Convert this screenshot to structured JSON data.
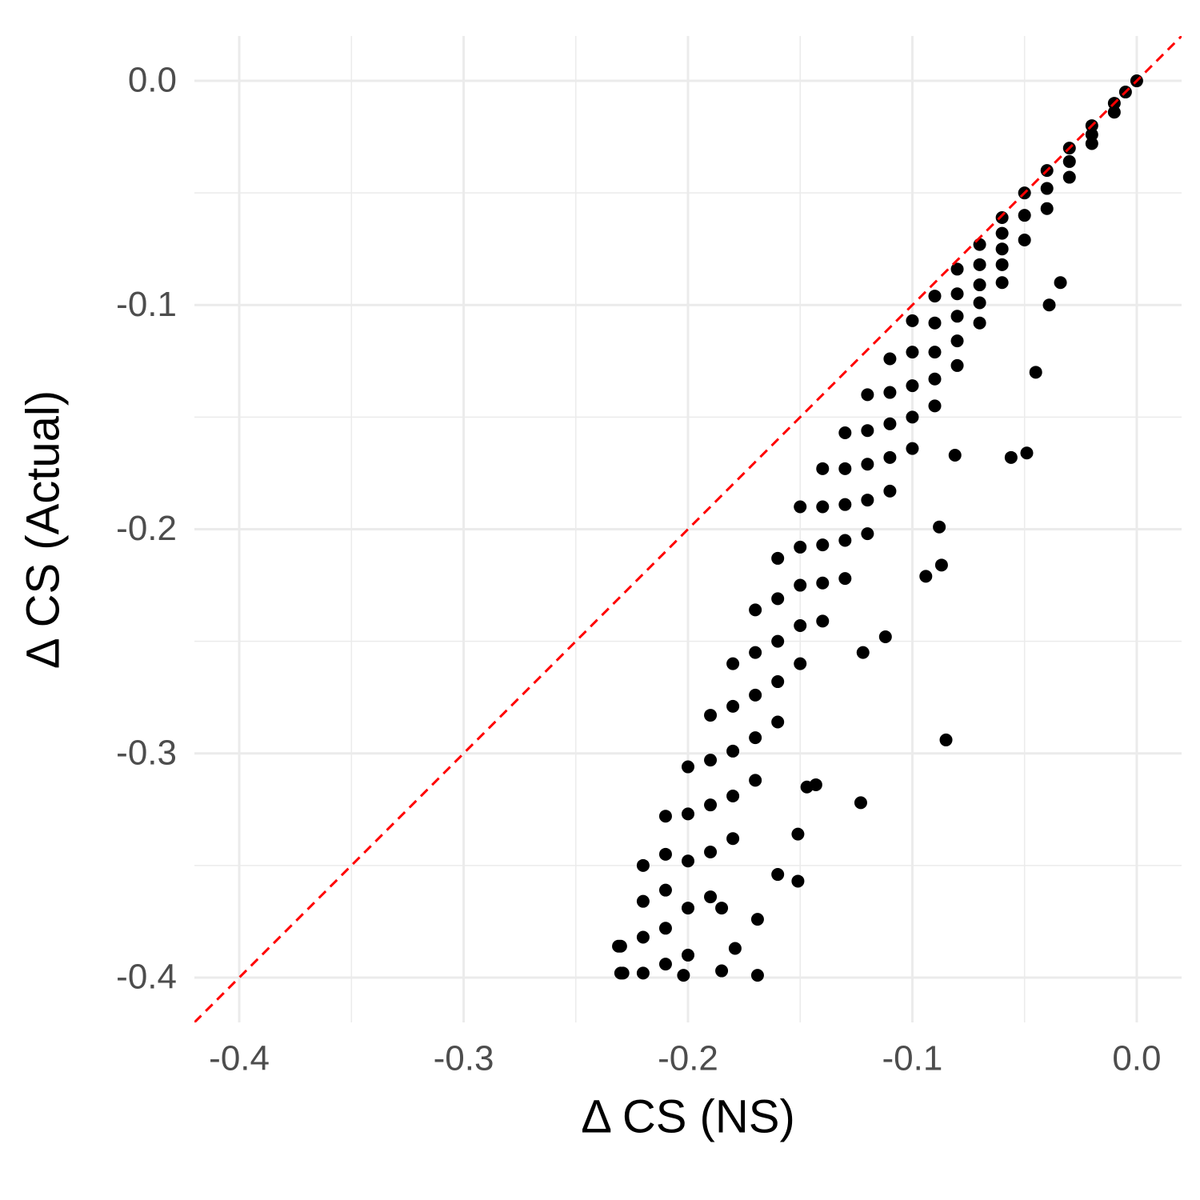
{
  "chart_data": {
    "type": "scatter",
    "x_label": "Δ CS (NS)",
    "y_label": "Δ CS (Actual)",
    "xlim": [
      -0.42,
      0.02
    ],
    "ylim": [
      -0.42,
      0.02
    ],
    "xticks": [
      {
        "value": -0.4,
        "label": "-0.4"
      },
      {
        "value": -0.3,
        "label": "-0.3"
      },
      {
        "value": -0.2,
        "label": "-0.2"
      },
      {
        "value": -0.1,
        "label": "-0.1"
      },
      {
        "value": 0,
        "label": "0.0"
      }
    ],
    "yticks": [
      {
        "value": -0.4,
        "label": "-0.4"
      },
      {
        "value": -0.3,
        "label": "-0.3"
      },
      {
        "value": -0.2,
        "label": "-0.2"
      },
      {
        "value": -0.1,
        "label": "-0.1"
      },
      {
        "value": 0,
        "label": "0.0"
      }
    ],
    "x_minor_ticks": [
      -0.35,
      -0.25,
      -0.15,
      -0.05
    ],
    "y_minor_ticks": [
      -0.35,
      -0.25,
      -0.15,
      -0.05
    ],
    "grid": true,
    "color": "#000000",
    "reference_line": {
      "slope": 1,
      "intercept": 0,
      "color": "#ff0000"
    },
    "x": [
      0,
      -0.005,
      -0.01,
      -0.01,
      -0.02,
      -0.02,
      -0.02,
      -0.03,
      -0.03,
      -0.03,
      -0.04,
      -0.04,
      -0.04,
      -0.05,
      -0.05,
      -0.05,
      -0.06,
      -0.06,
      -0.06,
      -0.06,
      -0.06,
      -0.07,
      -0.07,
      -0.07,
      -0.07,
      -0.07,
      -0.08,
      -0.08,
      -0.08,
      -0.08,
      -0.08,
      -0.09,
      -0.09,
      -0.09,
      -0.09,
      -0.09,
      -0.1,
      -0.1,
      -0.1,
      -0.1,
      -0.1,
      -0.11,
      -0.11,
      -0.11,
      -0.11,
      -0.11,
      -0.12,
      -0.12,
      -0.12,
      -0.12,
      -0.12,
      -0.13,
      -0.13,
      -0.13,
      -0.13,
      -0.13,
      -0.14,
      -0.14,
      -0.14,
      -0.14,
      -0.14,
      -0.15,
      -0.15,
      -0.15,
      -0.15,
      -0.15,
      -0.16,
      -0.16,
      -0.16,
      -0.16,
      -0.16,
      -0.17,
      -0.17,
      -0.17,
      -0.17,
      -0.17,
      -0.18,
      -0.18,
      -0.18,
      -0.18,
      -0.18,
      -0.19,
      -0.19,
      -0.19,
      -0.19,
      -0.19,
      -0.2,
      -0.2,
      -0.2,
      -0.2,
      -0.2,
      -0.21,
      -0.21,
      -0.21,
      -0.21,
      -0.21,
      -0.22,
      -0.22,
      -0.22,
      -0.22,
      -0.23,
      -0.23,
      -0.085,
      -0.123,
      -0.169,
      -0.049,
      -0.056,
      -0.045,
      -0.087,
      -0.094,
      -0.151,
      -0.16,
      -0.185,
      -0.179,
      -0.202,
      -0.229,
      -0.231,
      -0.169,
      -0.147,
      -0.143,
      -0.088,
      -0.081,
      -0.122,
      -0.112,
      -0.151,
      -0.185,
      -0.039,
      -0.034
    ],
    "values": [
      0,
      -0.005,
      -0.01,
      -0.014,
      -0.02,
      -0.024,
      -0.028,
      -0.03,
      -0.036,
      -0.043,
      -0.04,
      -0.048,
      -0.057,
      -0.05,
      -0.06,
      -0.071,
      -0.061,
      -0.068,
      -0.075,
      -0.082,
      -0.09,
      -0.073,
      -0.082,
      -0.091,
      -0.099,
      -0.108,
      -0.084,
      -0.095,
      -0.105,
      -0.116,
      -0.127,
      -0.096,
      -0.108,
      -0.121,
      -0.133,
      -0.145,
      -0.107,
      -0.121,
      -0.136,
      -0.15,
      -0.164,
      -0.124,
      -0.139,
      -0.153,
      -0.168,
      -0.183,
      -0.14,
      -0.156,
      -0.171,
      -0.187,
      -0.202,
      -0.157,
      -0.173,
      -0.189,
      -0.205,
      -0.222,
      -0.173,
      -0.19,
      -0.207,
      -0.224,
      -0.241,
      -0.19,
      -0.208,
      -0.225,
      -0.243,
      -0.26,
      -0.213,
      -0.231,
      -0.25,
      -0.268,
      -0.286,
      -0.236,
      -0.255,
      -0.274,
      -0.293,
      -0.312,
      -0.26,
      -0.279,
      -0.299,
      -0.319,
      -0.338,
      -0.283,
      -0.303,
      -0.323,
      -0.344,
      -0.364,
      -0.306,
      -0.327,
      -0.348,
      -0.369,
      -0.39,
      -0.328,
      -0.345,
      -0.361,
      -0.378,
      -0.394,
      -0.35,
      -0.366,
      -0.382,
      -0.398,
      -0.386,
      -0.398,
      -0.294,
      -0.322,
      -0.399,
      -0.166,
      -0.168,
      -0.13,
      -0.216,
      -0.221,
      -0.357,
      -0.354,
      -0.397,
      -0.387,
      -0.399,
      -0.398,
      -0.386,
      -0.374,
      -0.315,
      -0.314,
      -0.199,
      -0.167,
      -0.255,
      -0.248,
      -0.336,
      -0.369,
      -0.1,
      -0.09
    ]
  }
}
